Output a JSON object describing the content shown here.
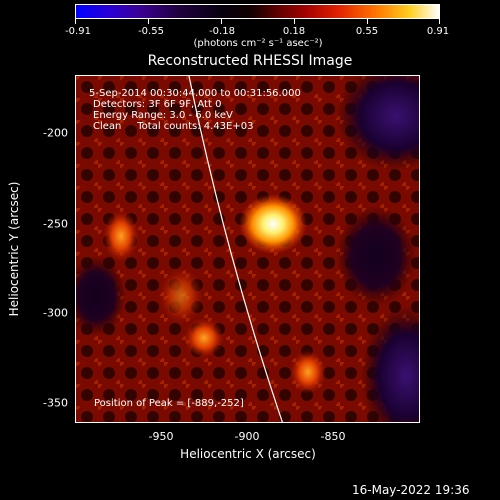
{
  "colorbar": {
    "tick_labels": [
      "-0.91",
      "-0.55",
      "-0.18",
      "0.18",
      "0.55",
      "0.91"
    ],
    "units": "(photons cm⁻² s⁻¹ asec⁻²)"
  },
  "title": "Reconstructed RHESSI Image",
  "info": {
    "line1": "5-Sep-2014 00:30:44.000 to 00:31:56.000",
    "line2": "Detectors: 3F 6F 9F, Att 0",
    "line3": "Energy Range: 3.0 - 6.0 keV",
    "line4": "Clean     Total counts: 4.43E+03",
    "peak": "Position of Peak = [-889,-252]"
  },
  "axes": {
    "xlabel": "Heliocentric X (arcsec)",
    "ylabel": "Heliocentric Y (arcsec)",
    "xticks": [
      "-950",
      "-900",
      "-850"
    ],
    "yticks": [
      "-200",
      "-250",
      "-300",
      "-350"
    ]
  },
  "colors": {
    "background": "#000000",
    "colormap_low": "#0000ff",
    "colormap_high": "#ffffff",
    "limb_line": "#ffffff"
  },
  "footer": {
    "date": "16-May-2022 19:36"
  }
}
